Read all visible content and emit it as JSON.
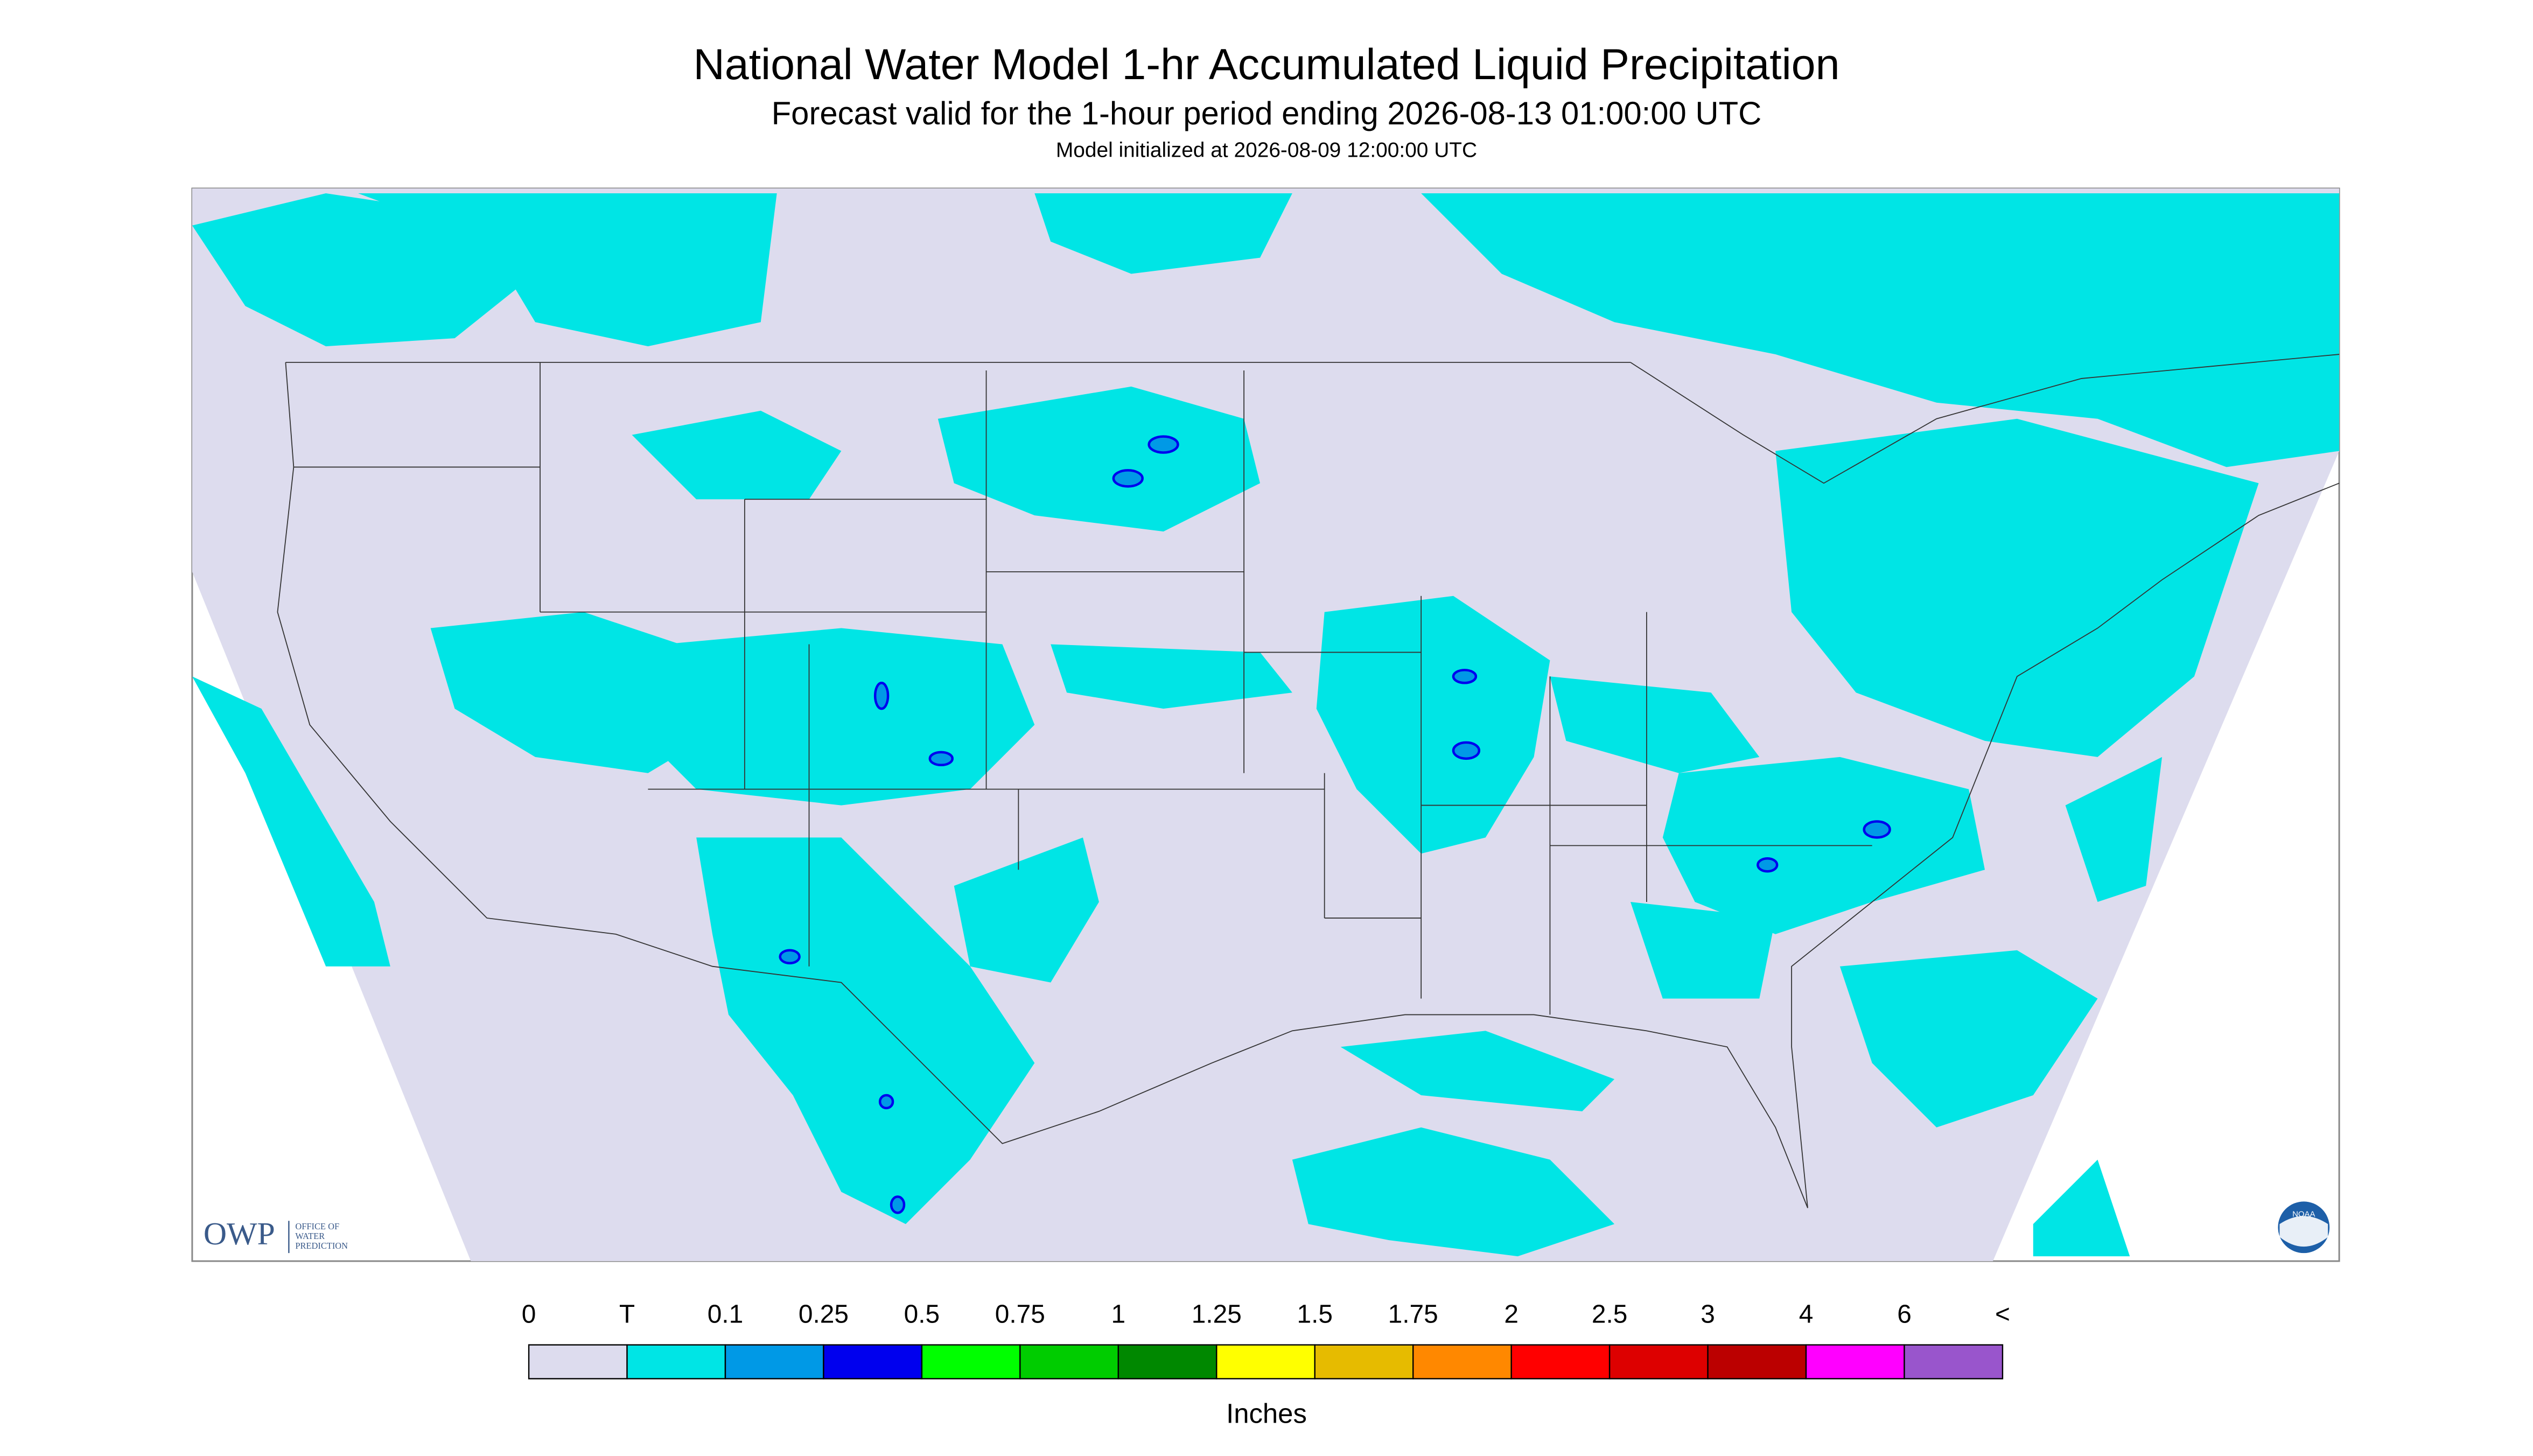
{
  "header": {
    "title": "National Water Model 1-hr Accumulated Liquid Precipitation",
    "subtitle": "Forecast valid for the 1-hour period ending 2026-08-13 01:00:00 UTC",
    "note": "Model initialized at 2026-08-09 12:00:00 UTC"
  },
  "logos": {
    "owp": "OWP",
    "owp_text": [
      "OFFICE OF",
      "WATER",
      "PREDICTION"
    ],
    "noaa": "NOAA"
  },
  "legend": {
    "labels": [
      "0",
      "T",
      "0.1",
      "0.25",
      "0.5",
      "0.75",
      "1",
      "1.25",
      "1.5",
      "1.75",
      "2",
      "2.5",
      "3",
      "4",
      "6",
      "<"
    ],
    "colors": [
      "#dddcee",
      "#00e5e5",
      "#0099e6",
      "#0000ee",
      "#00ff00",
      "#00cc00",
      "#008800",
      "#ffff00",
      "#e6bb00",
      "#ff8800",
      "#ff0000",
      "#dd0000",
      "#bb0000",
      "#ff00ff",
      "#9955cc"
    ],
    "units": "Inches"
  }
}
